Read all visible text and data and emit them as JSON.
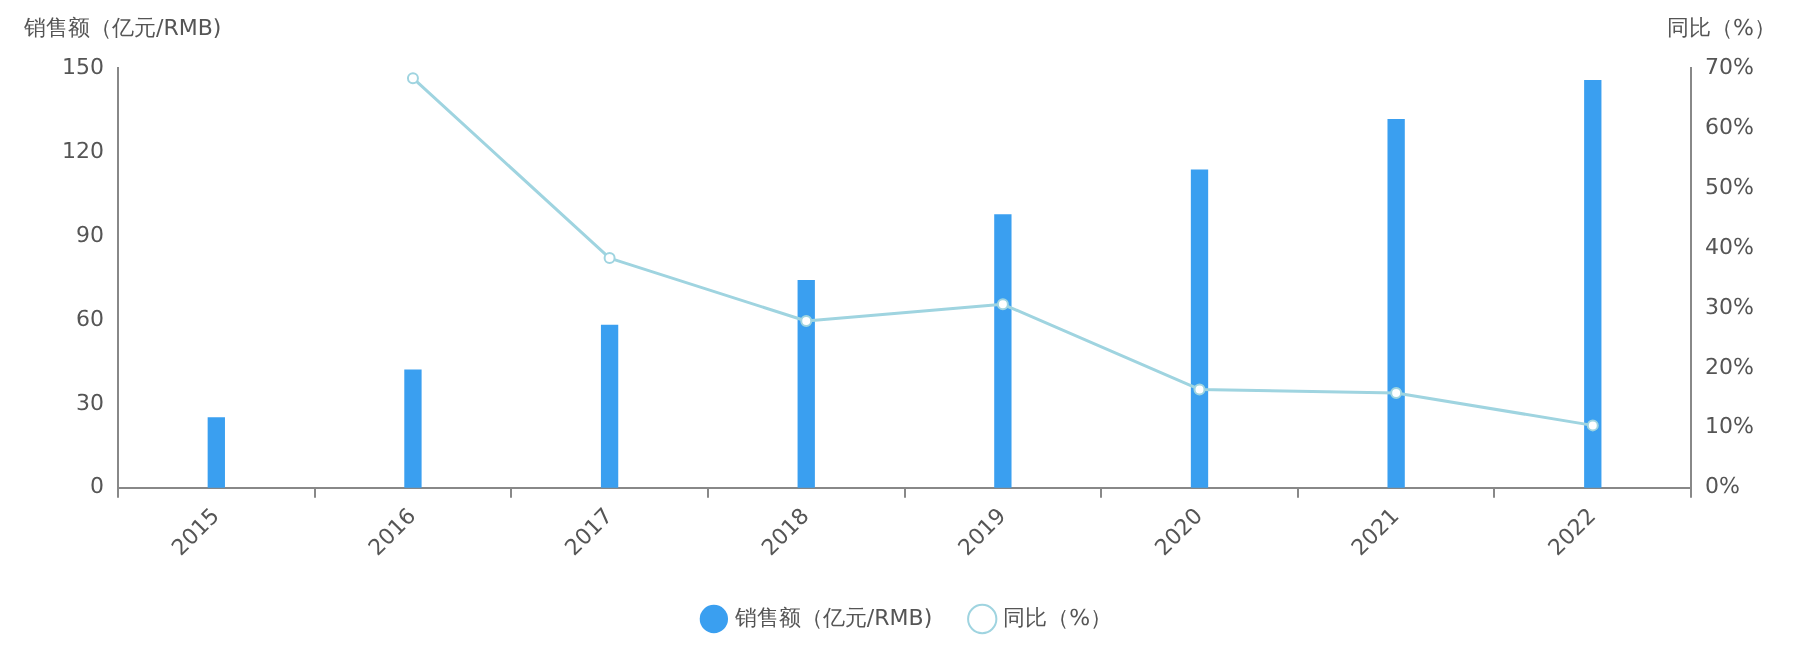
{
  "chart_data": {
    "type": "bar",
    "categories": [
      "2015",
      "2016",
      "2017",
      "2018",
      "2019",
      "2020",
      "2021",
      "2022"
    ],
    "ylabel": "销售额（亿元/RMB)",
    "y2label": "同比（%）",
    "series": [
      {
        "name": "销售额（亿元/RMB)",
        "color": "#3a9ff0",
        "values": [
          25,
          42,
          58,
          74,
          97.5,
          113.5,
          131.5,
          145.5
        ]
      },
      {
        "name": "同比（%）",
        "type": "line",
        "axis": "y2",
        "color": "#9fd4e0",
        "marker": "circle",
        "values": [
          null,
          68.3,
          38.3,
          27.8,
          30.6,
          16.4,
          15.8,
          10.4
        ]
      }
    ],
    "ylim": [
      0,
      150
    ],
    "yticks": [
      0,
      30,
      60,
      90,
      120,
      150
    ],
    "y2lim": [
      0,
      70
    ],
    "y2ticks": [
      {
        "value": 0,
        "label": "0%"
      },
      {
        "value": 10,
        "label": "10%"
      },
      {
        "value": 20,
        "label": "20%"
      },
      {
        "value": 30,
        "label": "30%"
      },
      {
        "value": 40,
        "label": "40%"
      },
      {
        "value": 50,
        "label": "50%"
      },
      {
        "value": 60,
        "label": "60%"
      },
      {
        "value": 70,
        "label": "70%"
      }
    ],
    "grid": false,
    "legend": "bottom"
  }
}
